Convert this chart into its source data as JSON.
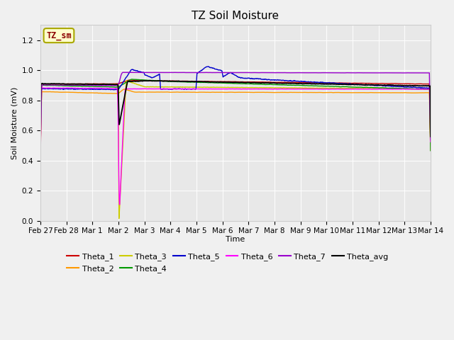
{
  "title": "TZ Soil Moisture",
  "xlabel": "Time",
  "ylabel": "Soil Moisture (mV)",
  "ylim": [
    0.0,
    1.3
  ],
  "yticks": [
    0.0,
    0.2,
    0.4,
    0.6,
    0.8,
    1.0,
    1.2
  ],
  "bg_color": "#e8e8e8",
  "fig_bg_color": "#f0f0f0",
  "legend_label": "TZ_sm",
  "legend_box_facecolor": "#ffffcc",
  "legend_box_edgecolor": "#aaa800",
  "legend_text_color": "#8b0000",
  "series_colors": {
    "Theta_1": "#cc0000",
    "Theta_2": "#ff9900",
    "Theta_3": "#cccc00",
    "Theta_4": "#009900",
    "Theta_5": "#0000cc",
    "Theta_6": "#ff00ff",
    "Theta_7": "#9900cc",
    "Theta_avg": "#000000"
  },
  "x_tick_labels": [
    "Feb 27",
    "Feb 28",
    "Mar 1",
    "Mar 2",
    "Mar 3",
    "Mar 4",
    "Mar 5",
    "Mar 6",
    "Mar 7",
    "Mar 8",
    "Mar 9",
    "Mar 10",
    "Mar 11",
    "Mar 12",
    "Mar 13",
    "Mar 14"
  ],
  "x_tick_positions": [
    0,
    1,
    2,
    3,
    4,
    5,
    6,
    7,
    8,
    9,
    10,
    11,
    12,
    13,
    14,
    15
  ],
  "figsize": [
    6.4,
    4.8
  ],
  "dpi": 100
}
